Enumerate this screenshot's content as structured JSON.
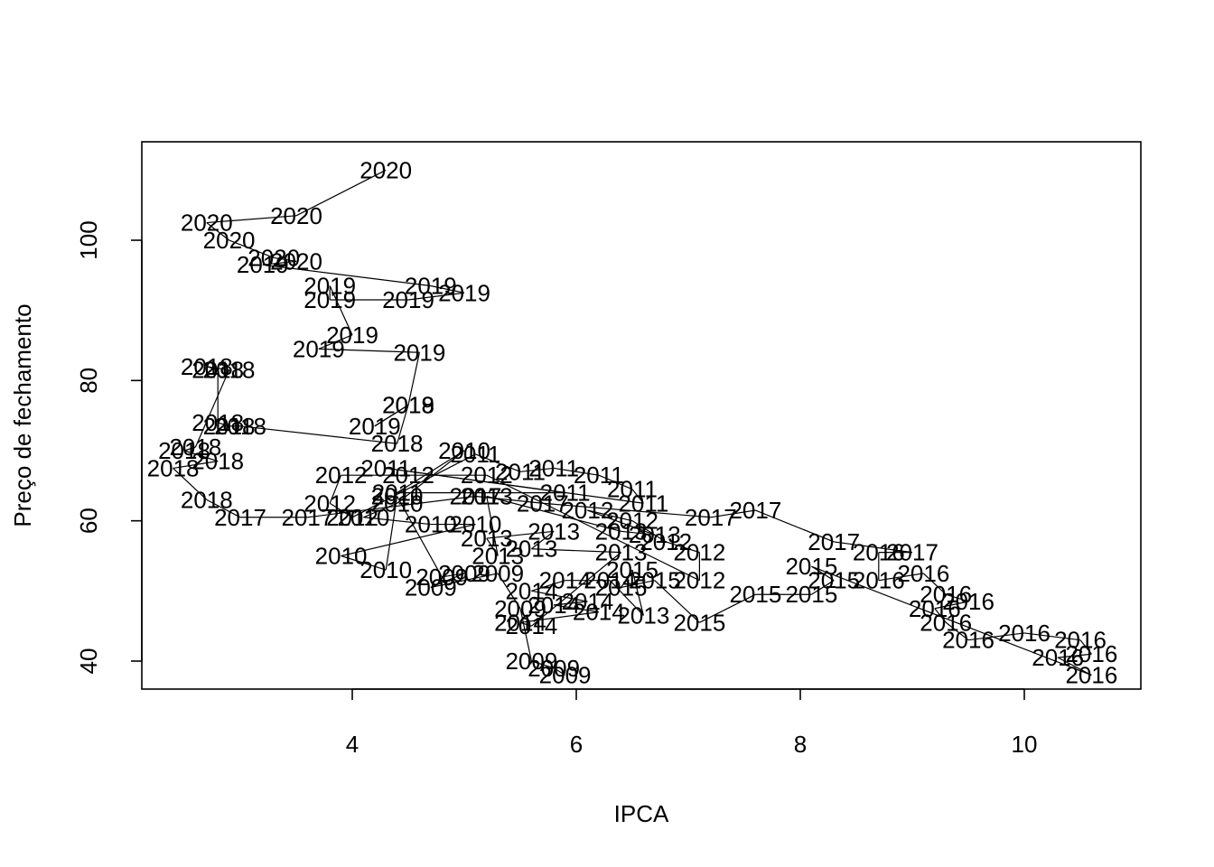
{
  "chart_data": {
    "type": "scatter",
    "xlabel": "IPCA",
    "ylabel": "Preço de fechamento",
    "x_ticks": [
      4,
      6,
      8,
      10
    ],
    "y_ticks": [
      40,
      60,
      80,
      100
    ],
    "xlim": [
      2.1,
      11.0
    ],
    "ylim": [
      36.0,
      114.0
    ],
    "marker": "year-text-label",
    "connected": true,
    "points": [
      {
        "x": 4.3,
        "y": 110.0,
        "label": "2020"
      },
      {
        "x": 3.5,
        "y": 103.5,
        "label": "2020"
      },
      {
        "x": 2.7,
        "y": 102.5,
        "label": "2020"
      },
      {
        "x": 2.9,
        "y": 100.0,
        "label": "2020"
      },
      {
        "x": 3.3,
        "y": 97.5,
        "label": "2020"
      },
      {
        "x": 3.5,
        "y": 97.0,
        "label": "2020"
      },
      {
        "x": 3.2,
        "y": 96.5,
        "label": "2019"
      },
      {
        "x": 4.7,
        "y": 93.5,
        "label": "2019"
      },
      {
        "x": 5.0,
        "y": 92.5,
        "label": "2019"
      },
      {
        "x": 4.5,
        "y": 91.5,
        "label": "2019"
      },
      {
        "x": 3.8,
        "y": 91.5,
        "label": "2019"
      },
      {
        "x": 3.8,
        "y": 93.5,
        "label": "2019"
      },
      {
        "x": 4.0,
        "y": 86.5,
        "label": "2019"
      },
      {
        "x": 3.7,
        "y": 84.5,
        "label": "2019"
      },
      {
        "x": 4.6,
        "y": 84.0,
        "label": "2019"
      },
      {
        "x": 4.5,
        "y": 76.5,
        "label": "2019"
      },
      {
        "x": 4.2,
        "y": 73.5,
        "label": "2019"
      },
      {
        "x": 4.5,
        "y": 76.5,
        "label": "2018"
      },
      {
        "x": 4.4,
        "y": 71.0,
        "label": "2018"
      },
      {
        "x": 3.0,
        "y": 73.5,
        "label": "2018"
      },
      {
        "x": 2.9,
        "y": 73.5,
        "label": "2018"
      },
      {
        "x": 2.8,
        "y": 74.0,
        "label": "2018"
      },
      {
        "x": 2.8,
        "y": 81.5,
        "label": "2018"
      },
      {
        "x": 2.7,
        "y": 82.0,
        "label": "2018"
      },
      {
        "x": 2.9,
        "y": 81.5,
        "label": "2018"
      },
      {
        "x": 2.6,
        "y": 70.5,
        "label": "2018"
      },
      {
        "x": 2.5,
        "y": 70.0,
        "label": "2018"
      },
      {
        "x": 2.8,
        "y": 68.5,
        "label": "2018"
      },
      {
        "x": 2.4,
        "y": 67.5,
        "label": "2018"
      },
      {
        "x": 2.7,
        "y": 63.0,
        "label": "2018"
      },
      {
        "x": 3.0,
        "y": 60.5,
        "label": "2017"
      },
      {
        "x": 3.6,
        "y": 60.5,
        "label": "2017"
      },
      {
        "x": 5.1,
        "y": 63.5,
        "label": "2017"
      },
      {
        "x": 5.7,
        "y": 62.5,
        "label": "2017"
      },
      {
        "x": 7.2,
        "y": 60.5,
        "label": "2017"
      },
      {
        "x": 7.6,
        "y": 61.5,
        "label": "2017"
      },
      {
        "x": 8.3,
        "y": 57.0,
        "label": "2017"
      },
      {
        "x": 9.0,
        "y": 55.5,
        "label": "2017"
      },
      {
        "x": 8.7,
        "y": 55.5,
        "label": "2016"
      },
      {
        "x": 8.7,
        "y": 51.5,
        "label": "2016"
      },
      {
        "x": 9.1,
        "y": 52.5,
        "label": "2016"
      },
      {
        "x": 9.3,
        "y": 49.5,
        "label": "2016"
      },
      {
        "x": 9.5,
        "y": 48.5,
        "label": "2016"
      },
      {
        "x": 9.2,
        "y": 47.5,
        "label": "2016"
      },
      {
        "x": 9.3,
        "y": 45.5,
        "label": "2016"
      },
      {
        "x": 9.5,
        "y": 43.0,
        "label": "2016"
      },
      {
        "x": 10.0,
        "y": 44.0,
        "label": "2016"
      },
      {
        "x": 10.5,
        "y": 43.0,
        "label": "2016"
      },
      {
        "x": 10.6,
        "y": 41.0,
        "label": "2016"
      },
      {
        "x": 10.3,
        "y": 40.5,
        "label": "2016"
      },
      {
        "x": 10.6,
        "y": 38.0,
        "label": "2016"
      },
      {
        "x": 8.1,
        "y": 53.5,
        "label": "2015"
      },
      {
        "x": 8.3,
        "y": 51.5,
        "label": "2015"
      },
      {
        "x": 8.1,
        "y": 49.5,
        "label": "2015"
      },
      {
        "x": 7.6,
        "y": 49.5,
        "label": "2015"
      },
      {
        "x": 7.1,
        "y": 45.5,
        "label": "2015"
      },
      {
        "x": 6.7,
        "y": 51.5,
        "label": "2015"
      },
      {
        "x": 6.4,
        "y": 50.5,
        "label": "2015"
      },
      {
        "x": 6.5,
        "y": 53.0,
        "label": "2015"
      },
      {
        "x": 6.6,
        "y": 46.5,
        "label": "2013"
      },
      {
        "x": 6.3,
        "y": 51.5,
        "label": "2014"
      },
      {
        "x": 5.9,
        "y": 51.5,
        "label": "2014"
      },
      {
        "x": 5.6,
        "y": 50.0,
        "label": "2014"
      },
      {
        "x": 6.1,
        "y": 48.5,
        "label": "2014"
      },
      {
        "x": 5.8,
        "y": 48.0,
        "label": "2014"
      },
      {
        "x": 6.2,
        "y": 47.0,
        "label": "2014"
      },
      {
        "x": 5.5,
        "y": 45.5,
        "label": "2014"
      },
      {
        "x": 5.6,
        "y": 45.0,
        "label": "2014"
      },
      {
        "x": 6.4,
        "y": 55.5,
        "label": "2013"
      },
      {
        "x": 5.6,
        "y": 56.0,
        "label": "2013"
      },
      {
        "x": 5.8,
        "y": 58.5,
        "label": "2013"
      },
      {
        "x": 5.2,
        "y": 57.5,
        "label": "2013"
      },
      {
        "x": 5.3,
        "y": 55.0,
        "label": "2013"
      },
      {
        "x": 5.2,
        "y": 63.5,
        "label": "2013"
      },
      {
        "x": 6.4,
        "y": 58.5,
        "label": "2013"
      },
      {
        "x": 6.7,
        "y": 58.0,
        "label": "2013"
      },
      {
        "x": 6.1,
        "y": 61.5,
        "label": "2012"
      },
      {
        "x": 6.5,
        "y": 60.0,
        "label": "2012"
      },
      {
        "x": 6.8,
        "y": 57.0,
        "label": "2012"
      },
      {
        "x": 7.1,
        "y": 55.5,
        "label": "2012"
      },
      {
        "x": 7.1,
        "y": 51.5,
        "label": "2012"
      },
      {
        "x": 5.2,
        "y": 66.5,
        "label": "2012"
      },
      {
        "x": 4.5,
        "y": 66.5,
        "label": "2012"
      },
      {
        "x": 3.9,
        "y": 66.5,
        "label": "2012"
      },
      {
        "x": 3.8,
        "y": 62.5,
        "label": "2012"
      },
      {
        "x": 4.0,
        "y": 60.5,
        "label": "2012"
      },
      {
        "x": 5.1,
        "y": 69.5,
        "label": "2011"
      },
      {
        "x": 5.5,
        "y": 67.0,
        "label": "2011"
      },
      {
        "x": 5.8,
        "y": 67.5,
        "label": "2011"
      },
      {
        "x": 6.2,
        "y": 66.5,
        "label": "2011"
      },
      {
        "x": 6.5,
        "y": 64.5,
        "label": "2011"
      },
      {
        "x": 6.6,
        "y": 62.5,
        "label": "2011"
      },
      {
        "x": 4.3,
        "y": 67.5,
        "label": "2011"
      },
      {
        "x": 5.9,
        "y": 64.0,
        "label": "2011"
      },
      {
        "x": 4.4,
        "y": 64.0,
        "label": "2011"
      },
      {
        "x": 5.0,
        "y": 70.0,
        "label": "2010"
      },
      {
        "x": 4.4,
        "y": 62.5,
        "label": "2010"
      },
      {
        "x": 4.1,
        "y": 60.5,
        "label": "2010"
      },
      {
        "x": 4.7,
        "y": 59.5,
        "label": "2010"
      },
      {
        "x": 5.1,
        "y": 59.5,
        "label": "2010"
      },
      {
        "x": 3.9,
        "y": 55.0,
        "label": "2010"
      },
      {
        "x": 4.3,
        "y": 53.0,
        "label": "2010"
      },
      {
        "x": 4.4,
        "y": 63.5,
        "label": "2010"
      },
      {
        "x": 4.8,
        "y": 52.0,
        "label": "2009"
      },
      {
        "x": 5.0,
        "y": 52.5,
        "label": "2009"
      },
      {
        "x": 4.7,
        "y": 50.5,
        "label": "2009"
      },
      {
        "x": 5.3,
        "y": 52.5,
        "label": "2009"
      },
      {
        "x": 5.5,
        "y": 47.5,
        "label": "2009"
      },
      {
        "x": 5.6,
        "y": 40.0,
        "label": "2009"
      },
      {
        "x": 5.8,
        "y": 39.0,
        "label": "2009"
      },
      {
        "x": 5.9,
        "y": 38.0,
        "label": "2009"
      }
    ],
    "colors": {
      "text": "#000000",
      "lines": "#000000",
      "background": "#ffffff"
    }
  }
}
